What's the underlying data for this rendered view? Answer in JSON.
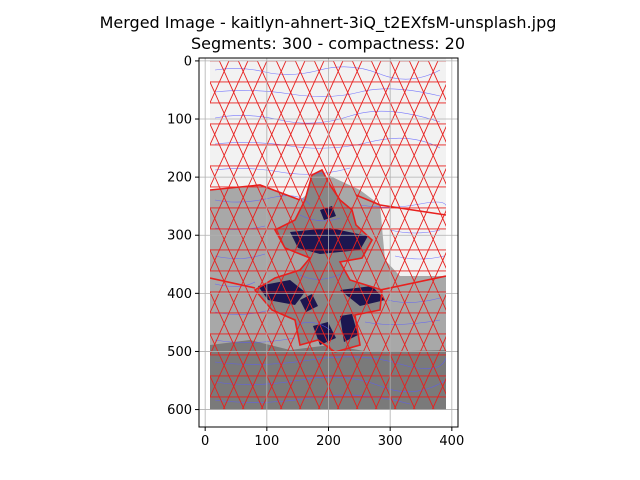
{
  "chart_data": {
    "type": "image",
    "title_line1": "Merged Image - kaitlyn-ahnert-3iQ_t2EXfsM-unsplash.jpg",
    "title_line2": "Segments: 300 - compactness: 20",
    "xlim": [
      -10,
      410
    ],
    "ylim": [
      630,
      -5
    ],
    "image_extent": {
      "width": 400,
      "height": 600
    },
    "grid": true,
    "x_ticks": [
      0,
      100,
      200,
      300,
      400
    ],
    "y_ticks": [
      0,
      100,
      200,
      300,
      400,
      500,
      600
    ],
    "colors": {
      "background_light": "#f2f2f2",
      "mid_gray": "#a8a8a8",
      "dark_gray": "#7a7a7a",
      "segment_border": "#e8201e",
      "figure_dark": "#1c1650",
      "flow_lines": "#5a5aff"
    }
  }
}
